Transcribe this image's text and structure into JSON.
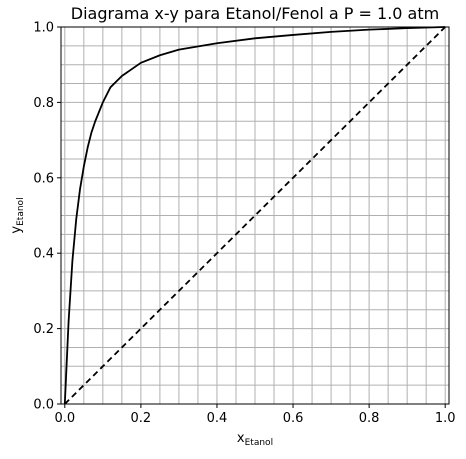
{
  "chart_data": {
    "type": "line",
    "title": "Diagrama x-y para Etanol/Fenol a P = 1.0 atm",
    "xlabel_main": "x",
    "xlabel_sub": "Etanol",
    "ylabel_main": "y",
    "ylabel_sub": "Etanol",
    "xlim": [
      -0.01,
      1.01
    ],
    "ylim": [
      0.0,
      1.0
    ],
    "xticks": [
      0.0,
      0.2,
      0.4,
      0.6,
      0.8,
      1.0
    ],
    "xtick_labels": [
      "0.0",
      "0.2",
      "0.4",
      "0.6",
      "0.8",
      "1.0"
    ],
    "yticks": [
      0.0,
      0.2,
      0.4,
      0.6,
      0.8,
      1.0
    ],
    "ytick_labels": [
      "0.0",
      "0.2",
      "0.4",
      "0.6",
      "0.8",
      "1.0"
    ],
    "grid_step": 0.05,
    "grid": true,
    "series": [
      {
        "style": "solid",
        "color": "#000000",
        "x": [
          0,
          0.01,
          0.02,
          0.03,
          0.04,
          0.05,
          0.06,
          0.07,
          0.08,
          0.1,
          0.12,
          0.15,
          0.2,
          0.25,
          0.3,
          0.4,
          0.5,
          0.6,
          0.7,
          0.8,
          0.9,
          1.0
        ],
        "y": [
          0,
          0.22,
          0.38,
          0.49,
          0.57,
          0.63,
          0.68,
          0.72,
          0.75,
          0.8,
          0.84,
          0.87,
          0.905,
          0.925,
          0.94,
          0.957,
          0.97,
          0.979,
          0.987,
          0.993,
          0.997,
          1.0
        ]
      },
      {
        "style": "dashed",
        "color": "#000000",
        "x": [
          0,
          1
        ],
        "y": [
          0,
          1
        ]
      }
    ]
  }
}
